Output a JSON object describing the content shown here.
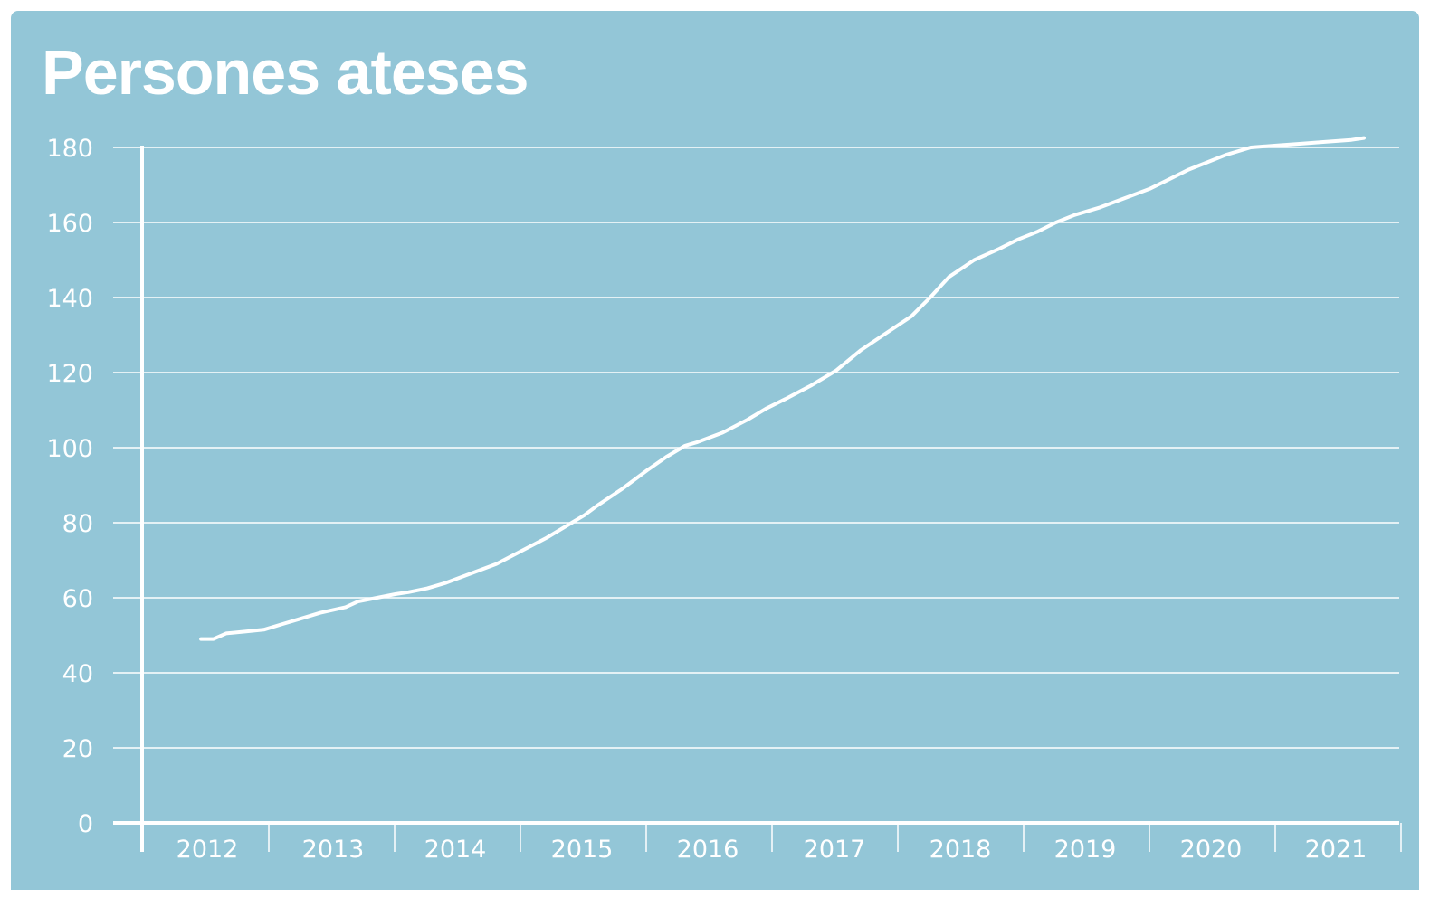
{
  "colors": {
    "panel": "#93c6d7",
    "foreground": "#ffffff"
  },
  "chart_data": {
    "type": "line",
    "title": "Persones ateses",
    "xlabel": "",
    "ylabel": "",
    "ylim": [
      0,
      180
    ],
    "xlim": [
      2011.6,
      2021.8
    ],
    "y_ticks": [
      0,
      20,
      40,
      60,
      80,
      100,
      120,
      140,
      160,
      180
    ],
    "x_ticks": [
      "2012",
      "2013",
      "2014",
      "2015",
      "2016",
      "2017",
      "2018",
      "2019",
      "2020",
      "2021"
    ],
    "grid": true,
    "legend": "none",
    "series": [
      {
        "x": [
          2011.95,
          2012.05,
          2012.15,
          2012.3,
          2012.45,
          2012.6,
          2012.75,
          2012.9,
          2013.1,
          2013.2,
          2013.35,
          2013.5,
          2013.6,
          2013.75,
          2013.9,
          2014.1,
          2014.3,
          2014.5,
          2014.7,
          2014.9,
          2015.0,
          2015.1,
          2015.3,
          2015.5,
          2015.65,
          2015.8,
          2015.9,
          2016.1,
          2016.3,
          2016.45,
          2016.6,
          2016.8,
          2017.0,
          2017.2,
          2017.4,
          2017.6,
          2017.75,
          2017.9,
          2018.1,
          2018.3,
          2018.45,
          2018.6,
          2018.75,
          2018.9,
          2019.1,
          2019.3,
          2019.5,
          2019.65,
          2019.8,
          2019.95,
          2020.1,
          2020.3,
          2020.5,
          2020.7,
          2020.9,
          2021.1,
          2021.2
        ],
        "y": [
          49,
          49,
          50.5,
          51,
          51.5,
          53,
          54.5,
          56,
          57.5,
          59,
          60,
          61,
          61.5,
          62.5,
          64,
          66.5,
          69,
          72.5,
          76,
          80,
          82,
          84.5,
          89,
          94,
          97.5,
          100.5,
          101.5,
          104,
          107.5,
          110.5,
          113,
          116.5,
          120.5,
          126,
          130.5,
          135,
          140,
          145.5,
          150,
          153,
          155.5,
          157.5,
          160,
          162,
          164,
          166.5,
          169,
          171.5,
          174,
          176,
          178,
          180,
          180.5,
          181,
          181.5,
          182,
          182.5
        ]
      }
    ]
  }
}
